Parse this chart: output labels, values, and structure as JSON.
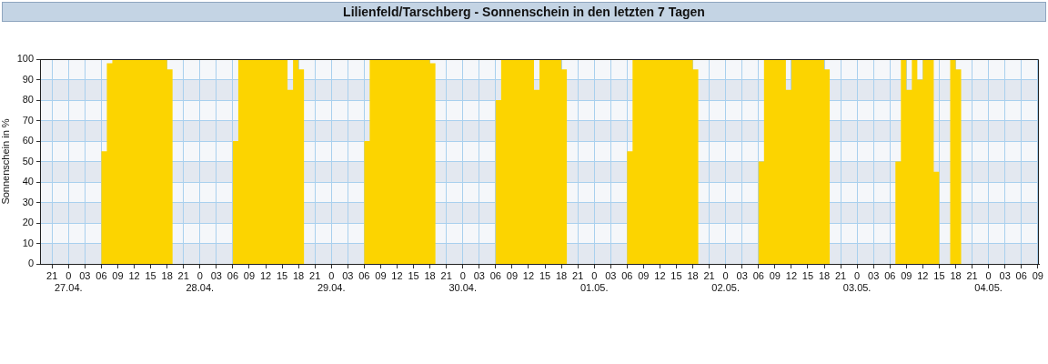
{
  "chart_data": {
    "type": "area",
    "title": "Lilienfeld/Tarschberg - Sonnenschein in den letzten 7 Tagen",
    "ylabel": "Sonnenschein in %",
    "color": "#fcd400",
    "x": [
      "--04-27T05:30",
      "--04-27T06:30",
      "--04-27T07:30",
      "--04-27T08:30",
      "--04-27T09:30",
      "--04-27T10:30",
      "--04-27T11:30",
      "--04-27T12:30",
      "--04-27T13:30",
      "--04-27T14:30",
      "--04-27T15:30",
      "--04-27T16:30",
      "--04-27T17:30",
      "--04-27T18:30",
      "--04-27T19:30",
      "--04-28T05:30",
      "--04-28T06:30",
      "--04-28T07:30",
      "--04-28T08:30",
      "--04-28T09:30",
      "--04-28T10:30",
      "--04-28T11:30",
      "--04-28T12:30",
      "--04-28T13:30",
      "--04-28T14:30",
      "--04-28T15:30",
      "--04-28T16:30",
      "--04-28T17:30",
      "--04-28T18:30",
      "--04-28T19:30",
      "--04-29T05:30",
      "--04-29T06:30",
      "--04-29T07:30",
      "--04-29T08:30",
      "--04-29T09:30",
      "--04-29T10:30",
      "--04-29T11:30",
      "--04-29T12:30",
      "--04-29T13:30",
      "--04-29T14:30",
      "--04-29T15:30",
      "--04-29T16:30",
      "--04-29T17:30",
      "--04-29T18:30",
      "--04-29T19:30",
      "--04-30T05:30",
      "--04-30T06:30",
      "--04-30T07:30",
      "--04-30T08:30",
      "--04-30T09:30",
      "--04-30T10:30",
      "--04-30T11:30",
      "--04-30T12:30",
      "--04-30T13:30",
      "--04-30T14:30",
      "--04-30T15:30",
      "--04-30T16:30",
      "--04-30T17:30",
      "--04-30T18:30",
      "--04-30T19:30",
      "--05-01T05:30",
      "--05-01T06:30",
      "--05-01T07:30",
      "--05-01T08:30",
      "--05-01T09:30",
      "--05-01T10:30",
      "--05-01T11:30",
      "--05-01T12:30",
      "--05-01T13:30",
      "--05-01T14:30",
      "--05-01T15:30",
      "--05-01T16:30",
      "--05-01T17:30",
      "--05-01T18:30",
      "--05-01T19:30",
      "--05-02T05:30",
      "--05-02T06:30",
      "--05-02T07:30",
      "--05-02T08:30",
      "--05-02T09:30",
      "--05-02T10:30",
      "--05-02T11:30",
      "--05-02T12:30",
      "--05-02T13:30",
      "--05-02T14:30",
      "--05-02T15:30",
      "--05-02T16:30",
      "--05-02T17:30",
      "--05-02T18:30",
      "--05-02T19:30",
      "--05-03T06:30",
      "--05-03T07:30",
      "--05-03T08:30",
      "--05-03T09:30",
      "--05-03T10:30",
      "--05-03T11:30",
      "--05-03T12:30",
      "--05-03T13:30",
      "--05-03T14:30",
      "--05-03T15:30",
      "--05-03T16:30",
      "--05-03T17:30",
      "--05-03T18:30",
      "--05-03T19:30"
    ],
    "values": [
      0,
      55,
      98,
      100,
      100,
      100,
      100,
      100,
      100,
      100,
      100,
      100,
      100,
      95,
      0,
      0,
      60,
      100,
      100,
      100,
      100,
      100,
      100,
      100,
      100,
      100,
      85,
      100,
      95,
      0,
      0,
      60,
      100,
      100,
      100,
      100,
      100,
      100,
      100,
      100,
      100,
      100,
      100,
      98,
      0,
      0,
      80,
      100,
      100,
      100,
      100,
      100,
      100,
      85,
      100,
      100,
      100,
      100,
      95,
      0,
      0,
      55,
      100,
      100,
      100,
      100,
      100,
      100,
      100,
      100,
      100,
      100,
      100,
      95,
      0,
      0,
      50,
      100,
      100,
      100,
      100,
      85,
      100,
      100,
      100,
      100,
      100,
      100,
      95,
      0,
      0,
      50,
      100,
      85,
      100,
      90,
      100,
      100,
      45,
      0,
      0,
      100,
      95,
      0
    ],
    "xlim": [
      "--04-26T18:48",
      "--05-04T09:12"
    ],
    "xticks": [
      {
        "value": "--04-26T21:00",
        "label": "21"
      },
      {
        "value": "--04-27T00:00",
        "label": "0\n27.04."
      },
      {
        "value": "--04-27T03:00",
        "label": "03"
      },
      {
        "value": "--04-27T06:00",
        "label": "06"
      },
      {
        "value": "--04-27T09:00",
        "label": "09"
      },
      {
        "value": "--04-27T12:00",
        "label": "12"
      },
      {
        "value": "--04-27T15:00",
        "label": "15"
      },
      {
        "value": "--04-27T18:00",
        "label": "18"
      },
      {
        "value": "--04-27T21:00",
        "label": "21"
      },
      {
        "value": "--04-28T00:00",
        "label": "0\n28.04."
      },
      {
        "value": "--04-28T03:00",
        "label": "03"
      },
      {
        "value": "--04-28T06:00",
        "label": "06"
      },
      {
        "value": "--04-28T09:00",
        "label": "09"
      },
      {
        "value": "--04-28T12:00",
        "label": "12"
      },
      {
        "value": "--04-28T15:00",
        "label": "15"
      },
      {
        "value": "--04-28T18:00",
        "label": "18"
      },
      {
        "value": "--04-28T21:00",
        "label": "21"
      },
      {
        "value": "--04-29T00:00",
        "label": "0\n29.04."
      },
      {
        "value": "--04-29T03:00",
        "label": "03"
      },
      {
        "value": "--04-29T06:00",
        "label": "06"
      },
      {
        "value": "--04-29T09:00",
        "label": "09"
      },
      {
        "value": "--04-29T12:00",
        "label": "12"
      },
      {
        "value": "--04-29T15:00",
        "label": "15"
      },
      {
        "value": "--04-29T18:00",
        "label": "18"
      },
      {
        "value": "--04-29T21:00",
        "label": "21"
      },
      {
        "value": "--04-30T00:00",
        "label": "0\n30.04."
      },
      {
        "value": "--04-30T03:00",
        "label": "03"
      },
      {
        "value": "--04-30T06:00",
        "label": "06"
      },
      {
        "value": "--04-30T09:00",
        "label": "09"
      },
      {
        "value": "--04-30T12:00",
        "label": "12"
      },
      {
        "value": "--04-30T15:00",
        "label": "15"
      },
      {
        "value": "--04-30T18:00",
        "label": "18"
      },
      {
        "value": "--04-30T21:00",
        "label": "21"
      },
      {
        "value": "--05-01T00:00",
        "label": "0\n01.05."
      },
      {
        "value": "--05-01T03:00",
        "label": "03"
      },
      {
        "value": "--05-01T06:00",
        "label": "06"
      },
      {
        "value": "--05-01T09:00",
        "label": "09"
      },
      {
        "value": "--05-01T12:00",
        "label": "12"
      },
      {
        "value": "--05-01T15:00",
        "label": "15"
      },
      {
        "value": "--05-01T18:00",
        "label": "18"
      },
      {
        "value": "--05-01T21:00",
        "label": "21"
      },
      {
        "value": "--05-02T00:00",
        "label": "0\n02.05."
      },
      {
        "value": "--05-02T03:00",
        "label": "03"
      },
      {
        "value": "--05-02T06:00",
        "label": "06"
      },
      {
        "value": "--05-02T09:00",
        "label": "09"
      },
      {
        "value": "--05-02T12:00",
        "label": "12"
      },
      {
        "value": "--05-02T15:00",
        "label": "15"
      },
      {
        "value": "--05-02T18:00",
        "label": "18"
      },
      {
        "value": "--05-02T21:00",
        "label": "21"
      },
      {
        "value": "--05-03T00:00",
        "label": "0\n03.05."
      },
      {
        "value": "--05-03T03:00",
        "label": "03"
      },
      {
        "value": "--05-03T06:00",
        "label": "06"
      },
      {
        "value": "--05-03T09:00",
        "label": "09"
      },
      {
        "value": "--05-03T12:00",
        "label": "12"
      },
      {
        "value": "--05-03T15:00",
        "label": "15"
      },
      {
        "value": "--05-03T18:00",
        "label": "18"
      },
      {
        "value": "--05-03T21:00",
        "label": "21"
      },
      {
        "value": "--05-04T00:00",
        "label": "0\n04.05."
      },
      {
        "value": "--05-04T03:00",
        "label": "03"
      },
      {
        "value": "--05-04T06:00",
        "label": "06"
      },
      {
        "value": "--05-04T09:00",
        "label": "09"
      }
    ],
    "ylim": [
      0,
      100
    ],
    "yticks": [
      0,
      10,
      20,
      30,
      40,
      50,
      60,
      70,
      80,
      90,
      100
    ],
    "grid": true
  }
}
